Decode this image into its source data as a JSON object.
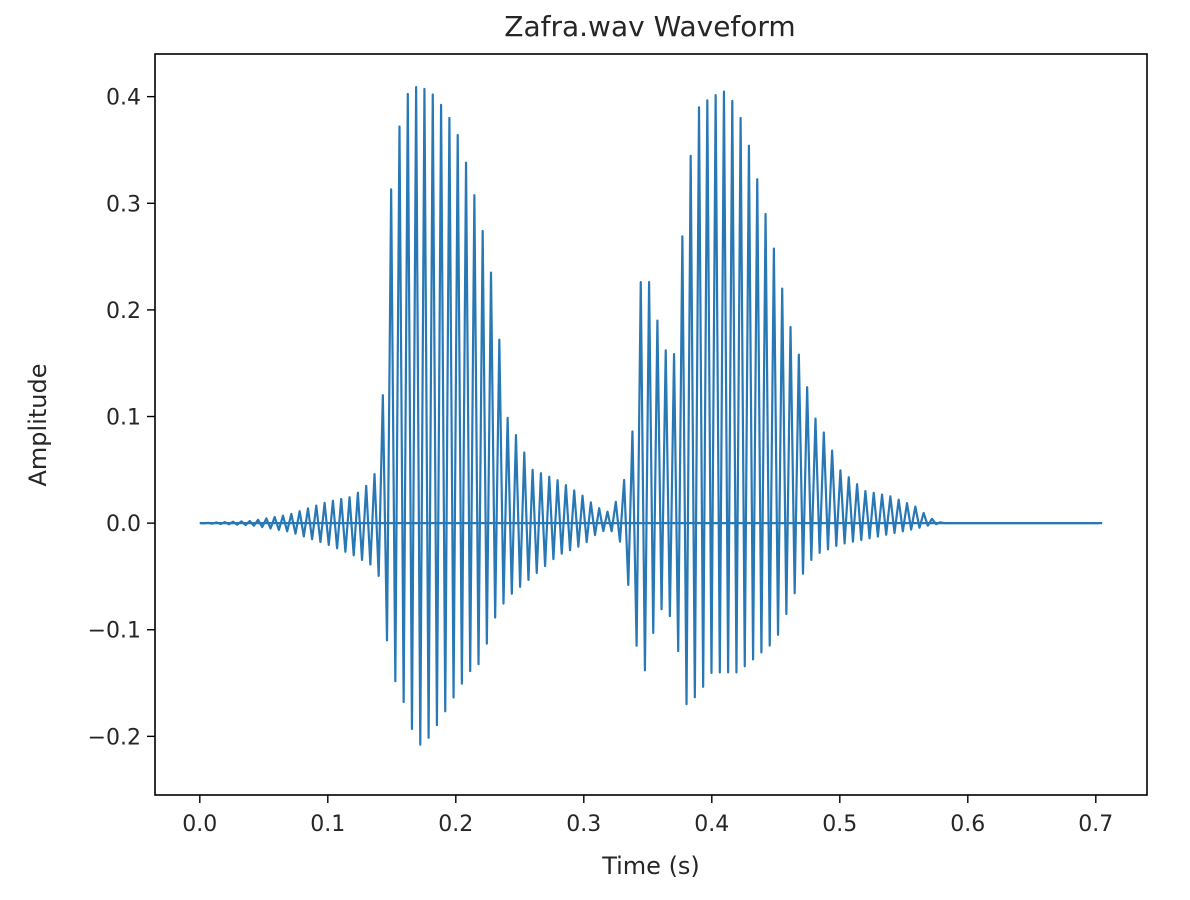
{
  "chart_data": {
    "type": "line",
    "title": "Zafra.wav Waveform",
    "xlabel": "Time (s)",
    "ylabel": "Amplitude",
    "xlim": [
      -0.035,
      0.74
    ],
    "ylim": [
      -0.255,
      0.44
    ],
    "xticks": [
      0.0,
      0.1,
      0.2,
      0.3,
      0.4,
      0.5,
      0.6,
      0.7
    ],
    "xtick_labels": [
      "0.0",
      "0.1",
      "0.2",
      "0.3",
      "0.4",
      "0.5",
      "0.6",
      "0.7"
    ],
    "yticks": [
      -0.2,
      -0.1,
      0.0,
      0.1,
      0.2,
      0.3,
      0.4
    ],
    "ytick_labels": [
      "−0.2",
      "−0.1",
      "0.0",
      "0.1",
      "0.2",
      "0.3",
      "0.4"
    ],
    "grid": false,
    "series": [
      {
        "color": "#2878b5",
        "envelope_t": [
          0.0,
          0.04,
          0.07,
          0.1,
          0.12,
          0.135,
          0.14,
          0.145,
          0.15,
          0.16,
          0.17,
          0.18,
          0.19,
          0.2,
          0.21,
          0.22,
          0.23,
          0.24,
          0.26,
          0.28,
          0.3,
          0.31,
          0.32,
          0.33,
          0.34,
          0.345,
          0.35,
          0.355,
          0.36,
          0.37,
          0.38,
          0.39,
          0.4,
          0.41,
          0.42,
          0.43,
          0.44,
          0.45,
          0.46,
          0.47,
          0.48,
          0.49,
          0.5,
          0.52,
          0.54,
          0.56,
          0.57,
          0.58,
          0.6,
          0.705
        ],
        "envelope_max": [
          0.0,
          0.002,
          0.008,
          0.02,
          0.025,
          0.04,
          0.06,
          0.16,
          0.33,
          0.4,
          0.41,
          0.405,
          0.39,
          0.37,
          0.33,
          0.28,
          0.22,
          0.1,
          0.05,
          0.04,
          0.025,
          0.015,
          0.01,
          0.03,
          0.1,
          0.24,
          0.23,
          0.21,
          0.17,
          0.15,
          0.32,
          0.39,
          0.4,
          0.405,
          0.39,
          0.35,
          0.3,
          0.25,
          0.19,
          0.15,
          0.1,
          0.08,
          0.05,
          0.03,
          0.025,
          0.015,
          0.005,
          0.0,
          0.0,
          0.0
        ],
        "envelope_min": [
          0.0,
          -0.002,
          -0.008,
          -0.02,
          -0.03,
          -0.04,
          -0.05,
          -0.1,
          -0.14,
          -0.17,
          -0.21,
          -0.2,
          -0.18,
          -0.16,
          -0.14,
          -0.13,
          -0.09,
          -0.07,
          -0.05,
          -0.03,
          -0.02,
          -0.01,
          -0.005,
          -0.02,
          -0.1,
          -0.16,
          -0.12,
          -0.1,
          -0.08,
          -0.09,
          -0.17,
          -0.16,
          -0.14,
          -0.14,
          -0.14,
          -0.13,
          -0.12,
          -0.11,
          -0.08,
          -0.05,
          -0.03,
          -0.025,
          -0.02,
          -0.015,
          -0.01,
          -0.005,
          -0.002,
          0.0,
          0.0,
          0.0
        ]
      }
    ]
  }
}
